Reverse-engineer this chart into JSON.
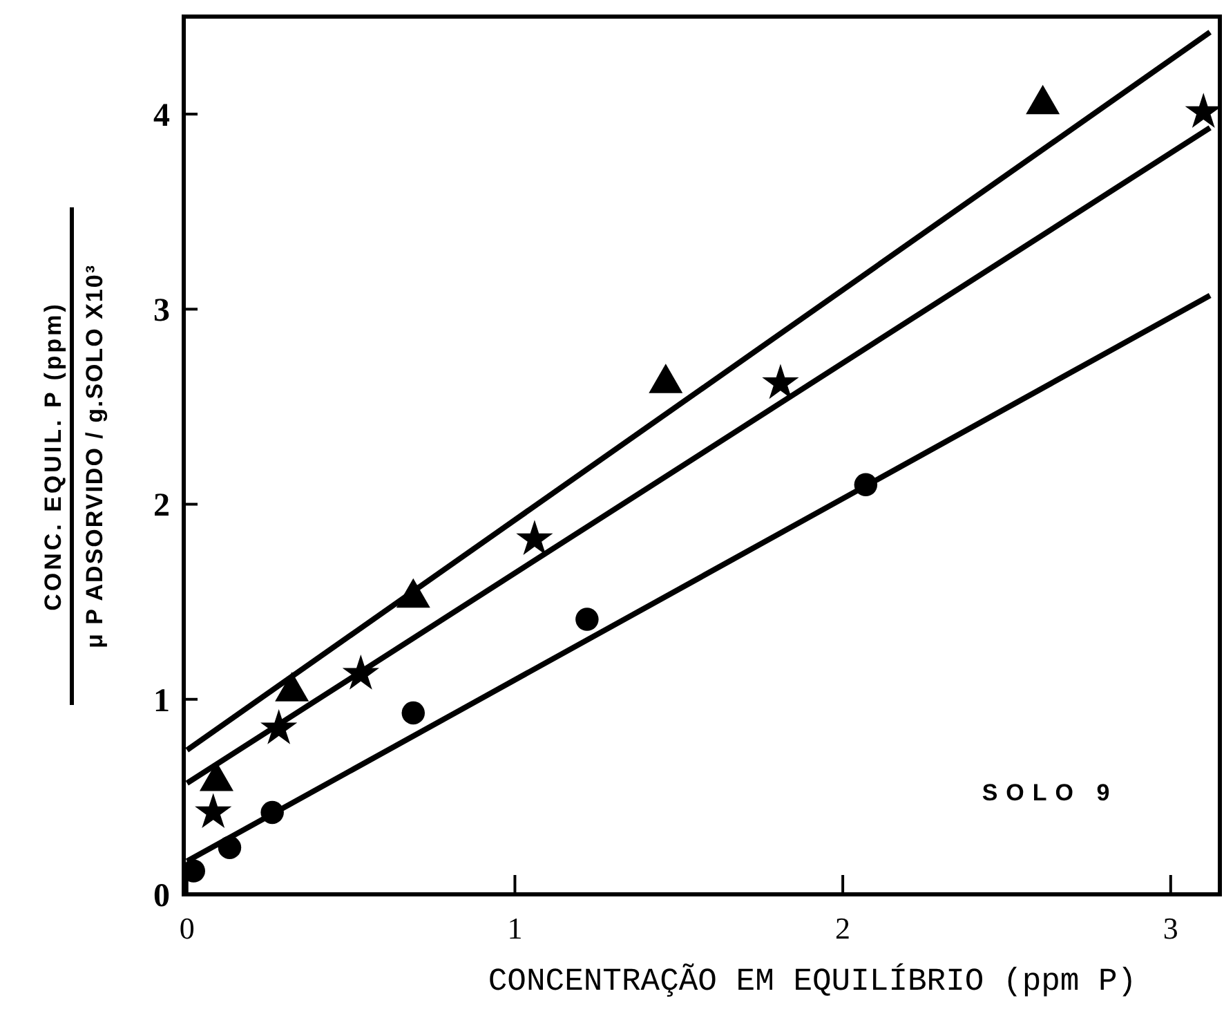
{
  "chart_data": {
    "type": "scatter",
    "xlabel": "CONCENTRAÇÃO EM EQUILÍBRIO (ppm P)",
    "ylabel": "CONC. EQUIL. P (ppm)\nμ P ADSORVIDO / g.SOLO   X10³",
    "annotations": [
      "SOLO 9"
    ],
    "xlim": [
      -0.01,
      3.15
    ],
    "ylim": [
      0,
      4.5
    ],
    "xticks": [
      0,
      1,
      2,
      3
    ],
    "yticks": [
      0,
      1,
      2,
      3,
      4
    ],
    "grid": false,
    "series": [
      {
        "marker": "triangle",
        "color": "#000000",
        "x": [
          0.09,
          0.32,
          0.69,
          1.46,
          2.61
        ],
        "values": [
          0.58,
          1.04,
          1.52,
          2.62,
          4.05
        ]
      },
      {
        "marker": "star",
        "color": "#000000",
        "x": [
          0.08,
          0.28,
          0.53,
          1.06,
          1.81,
          3.1
        ],
        "values": [
          0.42,
          0.85,
          1.13,
          1.82,
          2.62,
          4.01
        ]
      },
      {
        "marker": "circle",
        "color": "#000000",
        "x": [
          0.02,
          0.13,
          0.26,
          0.69,
          1.22,
          2.07
        ],
        "values": [
          0.12,
          0.24,
          0.42,
          0.93,
          1.41,
          2.1
        ]
      },
      {
        "type": "line",
        "marker": "none",
        "line_style": "solid",
        "color": "#000000",
        "x": [
          0,
          3.12
        ],
        "values": [
          0.74,
          4.42
        ]
      },
      {
        "type": "line",
        "marker": "none",
        "line_style": "solid",
        "color": "#000000",
        "x": [
          0,
          3.12
        ],
        "values": [
          0.57,
          3.93
        ]
      },
      {
        "type": "line",
        "marker": "none",
        "line_style": "solid",
        "color": "#000000",
        "x": [
          0,
          3.12
        ],
        "values": [
          0.17,
          3.07
        ]
      }
    ]
  }
}
